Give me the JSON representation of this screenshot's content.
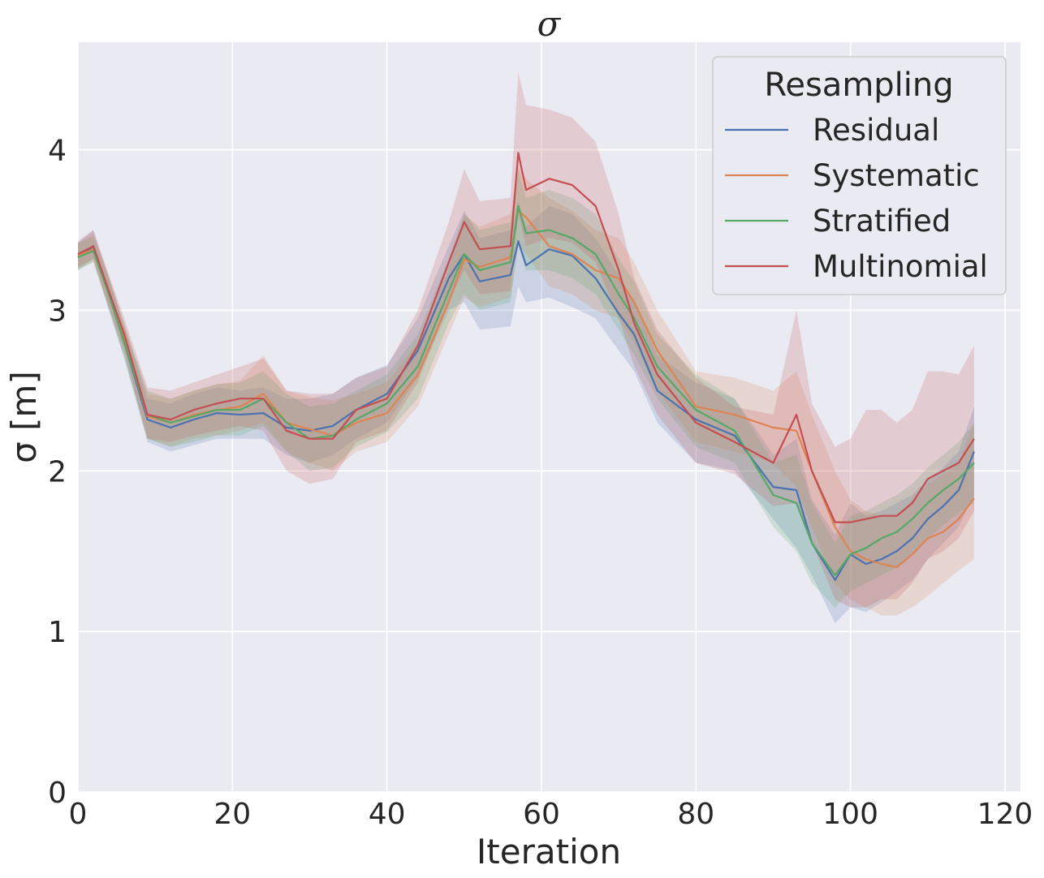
{
  "chart_data": {
    "type": "line",
    "title": "σ",
    "xlabel": "Iteration",
    "ylabel": "σ [m]",
    "xlim": [
      0,
      122
    ],
    "ylim": [
      0,
      4.67
    ],
    "xticks": [
      0,
      20,
      40,
      60,
      80,
      100,
      120
    ],
    "yticks": [
      0,
      1,
      2,
      3,
      4
    ],
    "xtick_labels": [
      "0",
      "20",
      "40",
      "60",
      "80",
      "100",
      "120"
    ],
    "ytick_labels": [
      "0",
      "1",
      "2",
      "3",
      "4"
    ],
    "grid": true,
    "legend": {
      "title": "Resampling",
      "position": "top-right"
    },
    "x_anchors": [
      0,
      2,
      4,
      6,
      9,
      12,
      15,
      18,
      21,
      24,
      27,
      30,
      33,
      36,
      40,
      44,
      48,
      50,
      52,
      56,
      57,
      58,
      61,
      64,
      67,
      70,
      72,
      75,
      80,
      85,
      90,
      93,
      95,
      98,
      100,
      102,
      104,
      106,
      108,
      110,
      112,
      114,
      116
    ],
    "series": [
      {
        "name": "Residual",
        "color": "#4c72b0",
        "values": [
          3.33,
          3.4,
          3.1,
          2.8,
          2.32,
          2.27,
          2.32,
          2.36,
          2.35,
          2.36,
          2.27,
          2.25,
          2.28,
          2.38,
          2.48,
          2.75,
          3.2,
          3.35,
          3.18,
          3.22,
          3.43,
          3.28,
          3.38,
          3.34,
          3.2,
          2.98,
          2.85,
          2.5,
          2.32,
          2.22,
          1.9,
          1.88,
          1.55,
          1.32,
          1.48,
          1.42,
          1.45,
          1.5,
          1.58,
          1.7,
          1.78,
          1.88,
          2.12
        ],
        "lower": [
          3.25,
          3.32,
          3.0,
          2.7,
          2.18,
          2.12,
          2.16,
          2.2,
          2.2,
          2.2,
          2.1,
          2.05,
          2.1,
          2.2,
          2.3,
          2.58,
          3.0,
          3.05,
          2.88,
          2.9,
          3.15,
          3.05,
          3.08,
          3.02,
          2.95,
          2.75,
          2.62,
          2.3,
          2.05,
          2.0,
          1.7,
          1.52,
          1.35,
          1.05,
          1.15,
          1.12,
          1.18,
          1.25,
          1.32,
          1.45,
          1.55,
          1.65,
          1.85
        ],
        "upper": [
          3.42,
          3.5,
          3.2,
          2.9,
          2.45,
          2.42,
          2.48,
          2.52,
          2.5,
          2.52,
          2.45,
          2.45,
          2.48,
          2.58,
          2.66,
          2.95,
          3.4,
          3.62,
          3.45,
          3.5,
          3.68,
          3.52,
          3.65,
          3.6,
          3.45,
          3.22,
          3.05,
          2.72,
          2.55,
          2.45,
          2.1,
          2.2,
          1.82,
          1.6,
          1.8,
          1.72,
          1.75,
          1.8,
          1.85,
          1.95,
          2.02,
          2.12,
          2.4
        ]
      },
      {
        "name": "Systematic",
        "color": "#dd8452",
        "values": [
          3.34,
          3.38,
          3.12,
          2.82,
          2.34,
          2.3,
          2.35,
          2.38,
          2.4,
          2.48,
          2.3,
          2.26,
          2.22,
          2.3,
          2.36,
          2.6,
          3.05,
          3.32,
          3.27,
          3.33,
          3.62,
          3.58,
          3.4,
          3.35,
          3.25,
          3.2,
          3.05,
          2.75,
          2.4,
          2.35,
          2.27,
          2.25,
          2.0,
          1.65,
          1.5,
          1.45,
          1.42,
          1.4,
          1.48,
          1.58,
          1.62,
          1.7,
          1.83
        ],
        "lower": [
          3.26,
          3.3,
          3.02,
          2.72,
          2.2,
          2.15,
          2.2,
          2.22,
          2.25,
          2.3,
          2.12,
          2.05,
          2.0,
          2.12,
          2.18,
          2.4,
          2.85,
          3.08,
          3.02,
          3.08,
          3.4,
          3.35,
          3.15,
          3.1,
          3.0,
          2.95,
          2.8,
          2.5,
          2.18,
          2.12,
          2.05,
          1.9,
          1.65,
          1.3,
          1.2,
          1.15,
          1.1,
          1.1,
          1.15,
          1.22,
          1.3,
          1.38,
          1.45
        ],
        "upper": [
          3.42,
          3.48,
          3.22,
          2.92,
          2.48,
          2.45,
          2.5,
          2.54,
          2.56,
          2.72,
          2.5,
          2.46,
          2.44,
          2.48,
          2.55,
          2.8,
          3.25,
          3.6,
          3.52,
          3.6,
          3.9,
          3.82,
          3.7,
          3.62,
          3.5,
          3.45,
          3.3,
          3.0,
          2.62,
          2.58,
          2.5,
          2.62,
          2.35,
          2.0,
          1.82,
          1.75,
          1.72,
          1.72,
          1.82,
          1.92,
          1.98,
          2.05,
          2.3
        ]
      },
      {
        "name": "Stratified",
        "color": "#55a868",
        "values": [
          3.33,
          3.37,
          3.1,
          2.8,
          2.35,
          2.3,
          2.34,
          2.38,
          2.38,
          2.45,
          2.3,
          2.2,
          2.22,
          2.32,
          2.42,
          2.65,
          3.12,
          3.35,
          3.25,
          3.3,
          3.65,
          3.48,
          3.5,
          3.45,
          3.35,
          3.1,
          2.95,
          2.65,
          2.38,
          2.25,
          1.85,
          1.8,
          1.55,
          1.35,
          1.48,
          1.52,
          1.58,
          1.62,
          1.7,
          1.8,
          1.88,
          1.95,
          2.05
        ],
        "lower": [
          3.25,
          3.3,
          3.0,
          2.7,
          2.2,
          2.15,
          2.18,
          2.22,
          2.22,
          2.28,
          2.12,
          2.0,
          2.02,
          2.15,
          2.24,
          2.45,
          2.92,
          3.1,
          3.0,
          3.05,
          3.42,
          3.25,
          3.25,
          3.2,
          3.1,
          2.88,
          2.72,
          2.45,
          2.15,
          2.05,
          1.65,
          1.5,
          1.3,
          1.15,
          1.25,
          1.3,
          1.35,
          1.4,
          1.48,
          1.58,
          1.66,
          1.74,
          1.8
        ],
        "upper": [
          3.42,
          3.46,
          3.2,
          2.9,
          2.5,
          2.45,
          2.5,
          2.54,
          2.55,
          2.62,
          2.48,
          2.4,
          2.42,
          2.5,
          2.6,
          2.85,
          3.32,
          3.6,
          3.5,
          3.55,
          3.88,
          3.7,
          3.75,
          3.7,
          3.6,
          3.32,
          3.18,
          2.85,
          2.6,
          2.45,
          2.05,
          2.1,
          1.8,
          1.55,
          1.72,
          1.75,
          1.8,
          1.85,
          1.92,
          2.02,
          2.1,
          2.18,
          2.3
        ]
      },
      {
        "name": "Multinomial",
        "color": "#c44e52",
        "values": [
          3.35,
          3.4,
          3.12,
          2.85,
          2.35,
          2.32,
          2.38,
          2.42,
          2.45,
          2.45,
          2.25,
          2.2,
          2.2,
          2.38,
          2.45,
          2.78,
          3.3,
          3.55,
          3.38,
          3.4,
          3.98,
          3.75,
          3.82,
          3.78,
          3.65,
          3.25,
          2.92,
          2.6,
          2.3,
          2.18,
          2.05,
          2.35,
          2.0,
          1.68,
          1.68,
          1.7,
          1.72,
          1.72,
          1.8,
          1.95,
          2.0,
          2.05,
          2.2
        ],
        "lower": [
          3.27,
          3.32,
          3.02,
          2.75,
          2.2,
          2.18,
          2.22,
          2.25,
          2.28,
          2.25,
          2.0,
          1.92,
          1.95,
          2.18,
          2.25,
          2.55,
          3.05,
          3.25,
          3.1,
          3.12,
          3.6,
          3.4,
          3.45,
          3.42,
          3.3,
          2.95,
          2.65,
          2.35,
          2.05,
          1.98,
          1.78,
          1.8,
          1.55,
          1.2,
          1.15,
          1.15,
          1.2,
          1.2,
          1.3,
          1.45,
          1.5,
          1.58,
          1.75
        ],
        "upper": [
          3.43,
          3.5,
          3.22,
          2.95,
          2.52,
          2.5,
          2.55,
          2.6,
          2.65,
          2.7,
          2.5,
          2.48,
          2.48,
          2.58,
          2.65,
          3.0,
          3.55,
          3.88,
          3.68,
          3.7,
          4.48,
          4.28,
          4.25,
          4.2,
          4.05,
          3.6,
          3.2,
          2.88,
          2.58,
          2.4,
          2.35,
          3.0,
          2.42,
          2.15,
          2.2,
          2.38,
          2.38,
          2.3,
          2.38,
          2.62,
          2.62,
          2.6,
          2.78
        ]
      }
    ]
  }
}
